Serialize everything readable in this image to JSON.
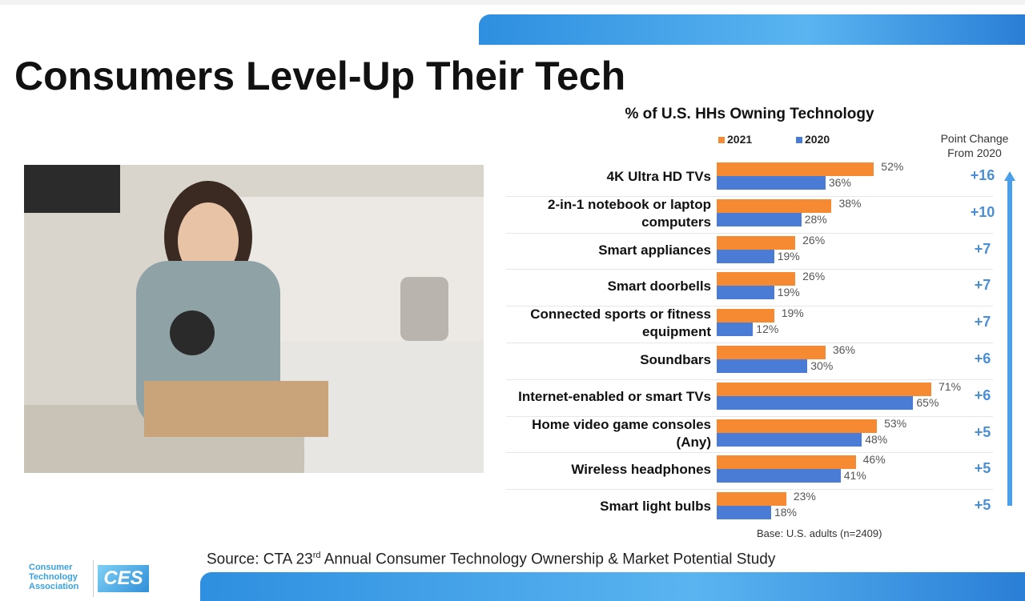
{
  "title": "Consumers Level-Up Their Tech",
  "chart_data": {
    "type": "bar",
    "orientation": "horizontal",
    "title": "% of U.S. HHs Owning Technology",
    "categories": [
      "4K Ultra HD TVs",
      "2-in-1 notebook or laptop computers",
      "Smart appliances",
      "Smart doorbells",
      "Connected sports or fitness equipment",
      "Soundbars",
      "Internet-enabled or smart TVs",
      "Home video game consoles (Any)",
      "Wireless headphones",
      "Smart light bulbs"
    ],
    "series": [
      {
        "name": "2021",
        "color": "#f58a32",
        "values": [
          52,
          38,
          26,
          26,
          19,
          36,
          71,
          53,
          46,
          23
        ],
        "value_labels": [
          "52%",
          "38%",
          "26%",
          "26%",
          "19%",
          "36%",
          "71%",
          "53%",
          "46%",
          "23%"
        ]
      },
      {
        "name": "2020",
        "color": "#4a7bd5",
        "values": [
          36,
          28,
          19,
          19,
          12,
          30,
          65,
          48,
          41,
          18
        ],
        "value_labels": [
          "36%",
          "28%",
          "19%",
          "19%",
          "12%",
          "30%",
          "65%",
          "48%",
          "41%",
          "18%"
        ]
      }
    ],
    "xlim": [
      0,
      80
    ],
    "change_title": "Point Change From 2020",
    "change_labels": [
      "+16",
      "+10",
      "+7",
      "+7",
      "+7",
      "+6",
      "+6",
      "+5",
      "+5",
      "+5"
    ],
    "note": "Base: U.S. adults (n=2409)"
  },
  "source": {
    "before": "Source: CTA 23",
    "sup": "rd",
    "after": " Annual Consumer Technology Ownership & Market Potential Study"
  },
  "logo": {
    "cta": "Consumer Technology Association",
    "ces": "CES"
  }
}
